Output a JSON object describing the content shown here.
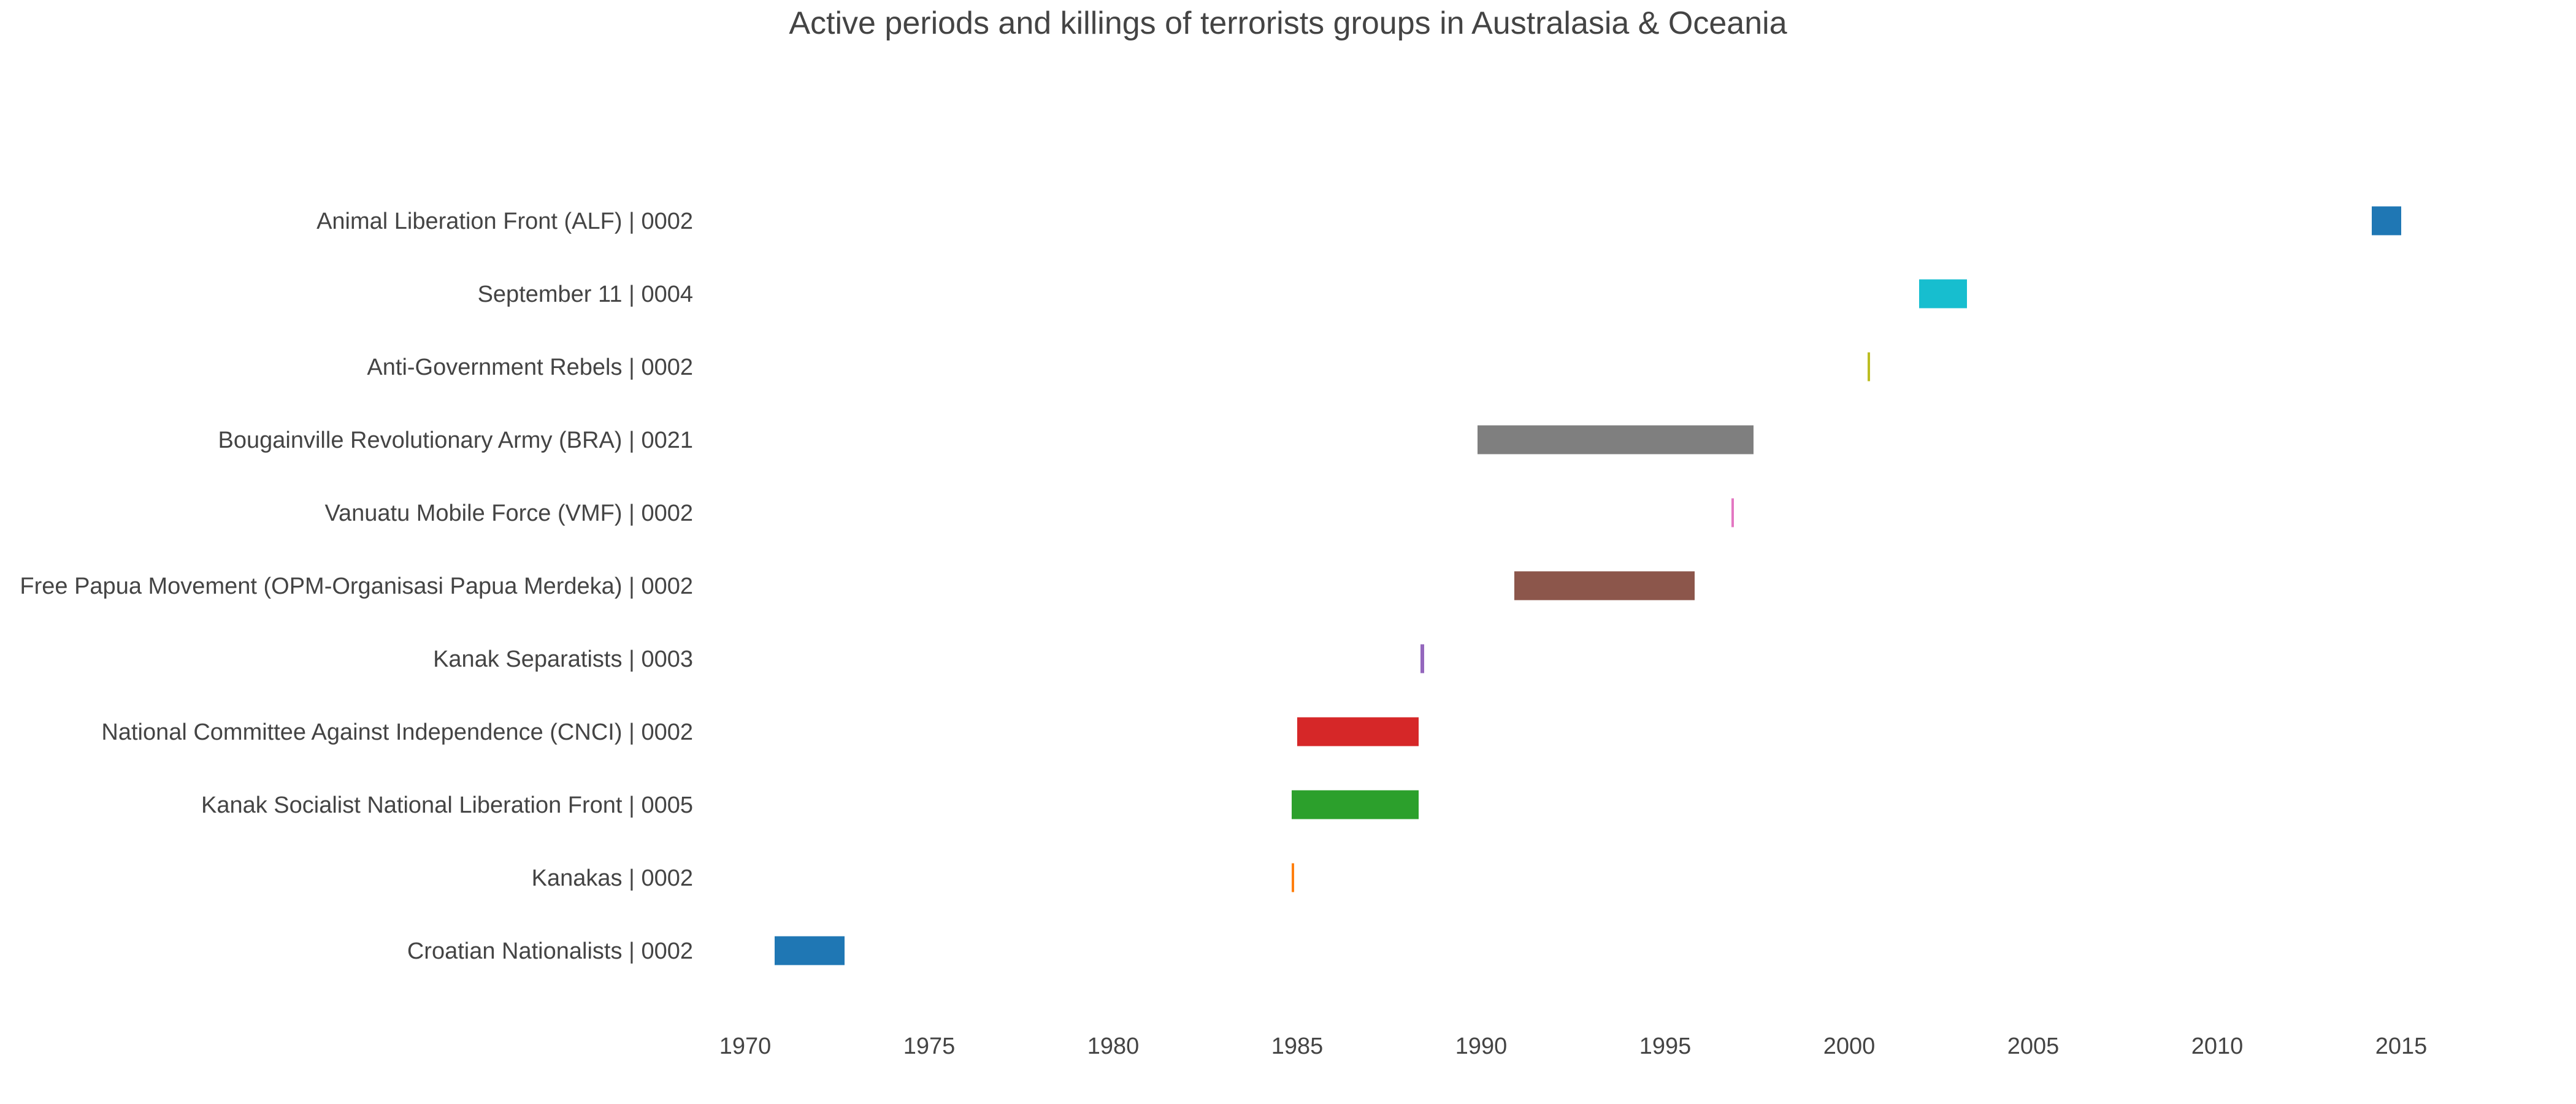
{
  "chart_data": {
    "type": "bar",
    "subtype": "gantt",
    "title": "Active periods and killings of terrorists groups in Australasia & Oceania",
    "xlabel": "",
    "ylabel": "",
    "xlim": [
      1969.5,
      2019
    ],
    "xticks": [
      1970,
      1975,
      1980,
      1985,
      1990,
      1995,
      2000,
      2005,
      2010,
      2015
    ],
    "grid": false,
    "legend": "none",
    "groups": [
      {
        "label": "Animal Liberation Front (ALF) | 0002",
        "start": 2014.2,
        "end": 2015.0,
        "color": "#1f77b4"
      },
      {
        "label": "September 11 | 0004",
        "start": 2001.9,
        "end": 2003.2,
        "color": "#17becf"
      },
      {
        "label": "Anti-Government Rebels | 0002",
        "start": 2000.5,
        "end": 2000.55,
        "color": "#bcbd22"
      },
      {
        "label": "Bougainville Revolutionary Army (BRA) | 0021",
        "start": 1989.9,
        "end": 1997.4,
        "color": "#7f7f7f"
      },
      {
        "label": "Vanuatu Mobile Force (VMF) | 0002",
        "start": 1996.8,
        "end": 1996.85,
        "color": "#e377c2"
      },
      {
        "label": "Free Papua Movement (OPM-Organisasi Papua Merdeka) | 0002",
        "start": 1990.9,
        "end": 1995.8,
        "color": "#8c564b"
      },
      {
        "label": "Kanak Separatists | 0003",
        "start": 1988.35,
        "end": 1988.45,
        "color": "#9467bd"
      },
      {
        "label": "National Committee Against Independence (CNCI) | 0002",
        "start": 1985.0,
        "end": 1988.3,
        "color": "#d62728"
      },
      {
        "label": "Kanak Socialist National Liberation Front | 0005",
        "start": 1984.85,
        "end": 1988.3,
        "color": "#2ca02c"
      },
      {
        "label": "Kanakas | 0002",
        "start": 1984.85,
        "end": 1984.9,
        "color": "#ff7f0e"
      },
      {
        "label": "Croatian Nationalists | 0002",
        "start": 1970.8,
        "end": 1972.7,
        "color": "#1f77b4"
      }
    ]
  }
}
